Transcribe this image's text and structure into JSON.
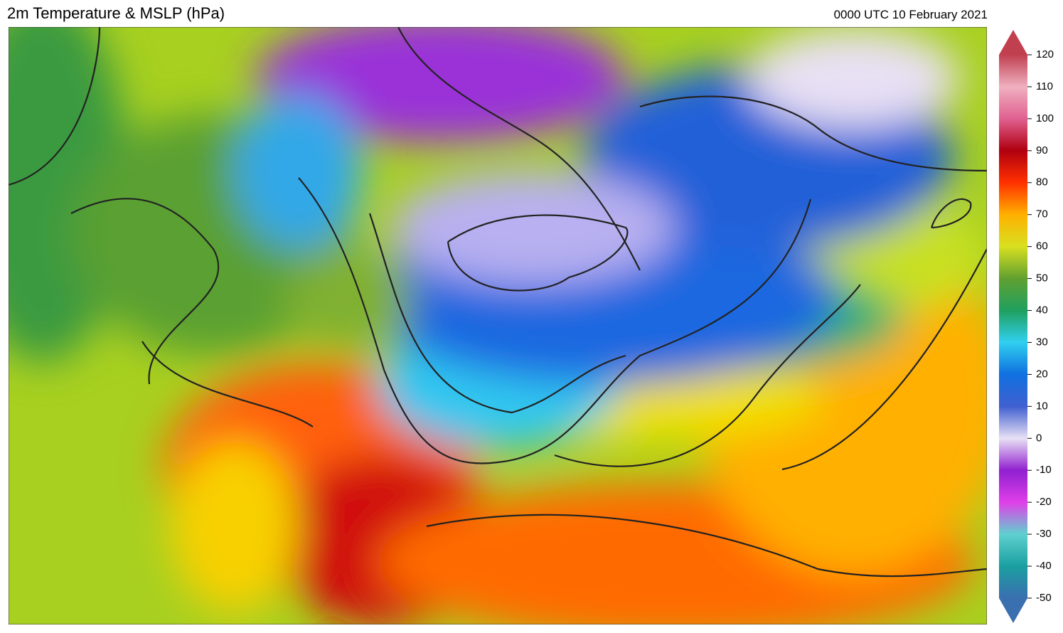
{
  "header": {
    "title": "2m Temperature & MSLP (hPa)",
    "timestamp": "0000 UTC 10 February 2021"
  },
  "colorbar": {
    "ticks": [
      -50,
      -40,
      -30,
      -20,
      -10,
      0,
      10,
      20,
      30,
      40,
      50,
      60,
      70,
      80,
      90,
      100,
      110,
      120
    ],
    "lim": [
      -50,
      120
    ]
  }
}
